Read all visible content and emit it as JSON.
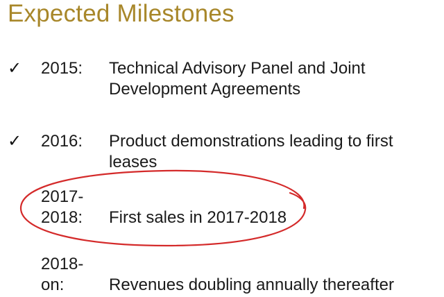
{
  "title": "Expected Milestones",
  "milestones": [
    {
      "check": "✓",
      "year": "2015:",
      "description": "Technical Advisory Panel and Joint Development Agreements"
    },
    {
      "check": "✓",
      "year": "2016:",
      "description": "Product demonstrations leading to first leases"
    },
    {
      "check": "",
      "year": "2017-\n2018:",
      "description": "First sales in 2017-2018"
    },
    {
      "check": "",
      "year": "2018-\non:",
      "description": "Revenues doubling annually thereafter"
    }
  ],
  "colors": {
    "title": "#a8872a",
    "text": "#1a1a1a",
    "highlight_circle": "#d42a2a"
  }
}
